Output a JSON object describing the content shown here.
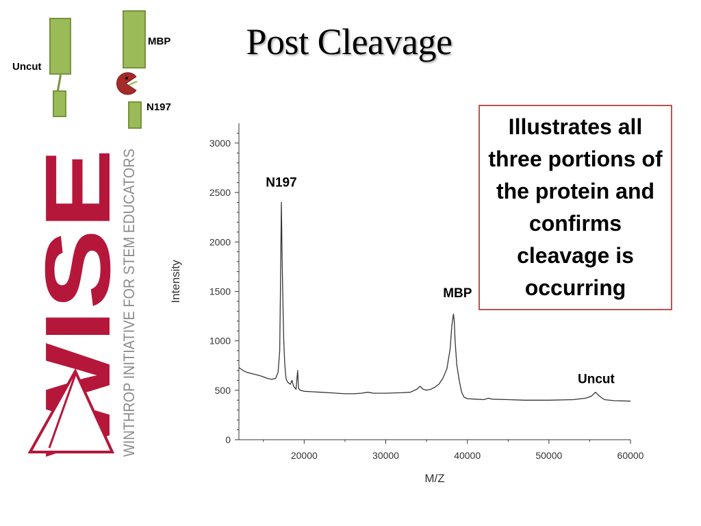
{
  "slide": {
    "title": "Post Cleavage",
    "callout_text": "Illustrates all three portions of the protein and confirms cleavage is occurring",
    "accent_color": "#c0504d"
  },
  "diagram": {
    "uncut_label": "Uncut",
    "mbp_label": "MBP",
    "n197_label": "N197",
    "bar_color": "#9bbb59",
    "enzyme_color": "#a52a2a",
    "enzyme_icon": "pacman-enzyme-icon"
  },
  "logo": {
    "wordmark": "WISE",
    "tagline": "WINTHROP INITIATIVE FOR STEM EDUCATORS",
    "color": "#b5173a"
  },
  "chart_data": {
    "type": "line",
    "title": "",
    "xlabel": "M/Z",
    "ylabel": "Intensity",
    "xlim": [
      12000,
      60000
    ],
    "ylim": [
      0,
      3200
    ],
    "xticks": [
      20000,
      30000,
      40000,
      50000,
      60000
    ],
    "yticks": [
      0,
      500,
      1000,
      1500,
      2000,
      2500,
      3000
    ],
    "annotations": [
      {
        "text": "N197",
        "x": 17200,
        "y": 2560
      },
      {
        "text": "MBP",
        "x": 38800,
        "y": 1440
      },
      {
        "text": "Uncut",
        "x": 55800,
        "y": 570
      }
    ],
    "series": [
      {
        "color": "#333333",
        "x": [
          12000,
          12500,
          13000,
          13500,
          14000,
          14500,
          15000,
          15500,
          16000,
          16500,
          16800,
          17000,
          17100,
          17200,
          17300,
          17400,
          17500,
          17600,
          17700,
          17800,
          18000,
          18300,
          18500,
          18700,
          19000,
          19200,
          19300,
          19500,
          20000,
          21000,
          22000,
          23000,
          24000,
          25000,
          26000,
          27000,
          27800,
          28500,
          30000,
          32000,
          33000,
          33800,
          34200,
          34600,
          35000,
          35500,
          36000,
          36500,
          37000,
          37500,
          37900,
          38100,
          38300,
          38400,
          38500,
          38700,
          39000,
          39300,
          39600,
          40000,
          41000,
          42000,
          42600,
          43000,
          45000,
          47000,
          50000,
          53000,
          54500,
          55200,
          55700,
          56200,
          56800,
          58000,
          60000
        ],
        "y": [
          730,
          700,
          680,
          670,
          660,
          650,
          635,
          620,
          610,
          620,
          680,
          900,
          1600,
          2400,
          1800,
          1350,
          1000,
          800,
          680,
          610,
          580,
          560,
          600,
          540,
          510,
          700,
          520,
          500,
          490,
          485,
          480,
          475,
          470,
          465,
          465,
          470,
          480,
          470,
          470,
          475,
          480,
          510,
          540,
          510,
          500,
          510,
          530,
          560,
          620,
          720,
          920,
          1150,
          1270,
          1200,
          1000,
          760,
          600,
          480,
          430,
          415,
          410,
          405,
          420,
          410,
          405,
          400,
          400,
          405,
          420,
          440,
          480,
          440,
          405,
          395,
          390
        ]
      }
    ]
  }
}
